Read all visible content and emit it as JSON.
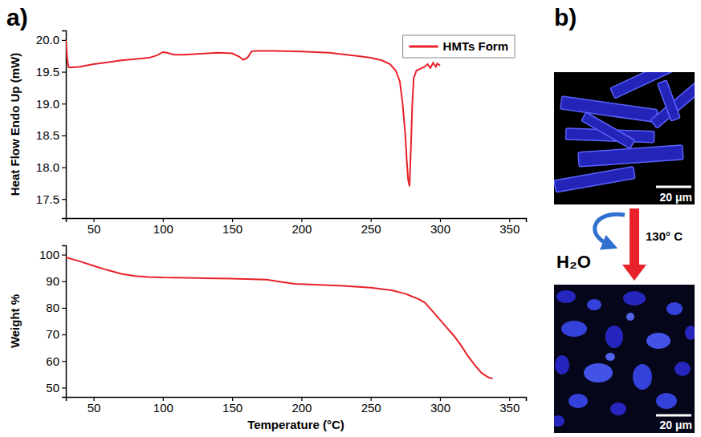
{
  "panel_a": {
    "label": "a)"
  },
  "panel_b": {
    "label": "b)",
    "scale_bar_top": "20 μm",
    "scale_bar_bottom": "20 μm",
    "arrow_label": "130° C",
    "byproduct": "H₂O"
  },
  "chart_data": [
    {
      "type": "line",
      "y_label": "Heat Flow Endo Up (mW)",
      "x": [
        30,
        31,
        32,
        35,
        40,
        50,
        60,
        70,
        80,
        90,
        96,
        100,
        103,
        108,
        115,
        125,
        140,
        150,
        155,
        158,
        161,
        164,
        167,
        180,
        200,
        220,
        240,
        250,
        258,
        264,
        268,
        271,
        273,
        275,
        276,
        277,
        278,
        279,
        280,
        281,
        283,
        286,
        289,
        291,
        293,
        295,
        297,
        298,
        300
      ],
      "series": [
        {
          "name": "HMTs Form",
          "color": "#e8212a",
          "values": [
            20.0,
            19.7,
            19.57,
            19.57,
            19.58,
            19.62,
            19.65,
            19.68,
            19.7,
            19.72,
            19.76,
            19.81,
            19.8,
            19.77,
            19.77,
            19.78,
            19.8,
            19.79,
            19.74,
            19.69,
            19.72,
            19.82,
            19.83,
            19.83,
            19.82,
            19.8,
            19.75,
            19.72,
            19.68,
            19.62,
            19.52,
            19.35,
            19.0,
            18.5,
            18.1,
            17.8,
            17.7,
            18.3,
            19.0,
            19.4,
            19.52,
            19.55,
            19.58,
            19.62,
            19.56,
            19.64,
            19.58,
            19.63,
            19.6
          ]
        }
      ],
      "xlim": [
        30,
        362
      ],
      "xticks": [
        50,
        100,
        150,
        200,
        250,
        300,
        350
      ],
      "ylim": [
        17.2,
        20.15
      ],
      "yticks": [
        17.5,
        {
          "value": 18,
          "label": "18.0"
        },
        18.5,
        {
          "value": 19,
          "label": "19.0"
        },
        19.5,
        {
          "value": 20,
          "label": "20.0"
        }
      ],
      "legend": "upper right"
    },
    {
      "type": "line",
      "x_label": "Temperature (°C)",
      "y_label": "Weight %",
      "x": [
        30,
        40,
        50,
        60,
        70,
        80,
        90,
        100,
        125,
        150,
        175,
        185,
        195,
        210,
        230,
        250,
        265,
        275,
        285,
        289,
        295,
        300,
        305,
        310,
        315,
        320,
        325,
        330,
        335,
        338
      ],
      "series": [
        {
          "color": "#e8212a",
          "values": [
            99,
            97.5,
            95.8,
            94.2,
            92.8,
            92,
            91.6,
            91.4,
            91.2,
            91,
            90.6,
            89.8,
            89,
            88.7,
            88.3,
            87.6,
            86.6,
            85.3,
            83.2,
            82,
            78.5,
            75.5,
            72.5,
            69.5,
            66,
            62,
            58.5,
            55.5,
            53.8,
            53.4
          ]
        }
      ],
      "xlim": [
        30,
        362
      ],
      "xticks": [
        50,
        100,
        150,
        200,
        250,
        300,
        350
      ],
      "ylim": [
        46.5,
        103.5
      ],
      "yticks": [
        50,
        60,
        70,
        80,
        90,
        100
      ]
    }
  ]
}
